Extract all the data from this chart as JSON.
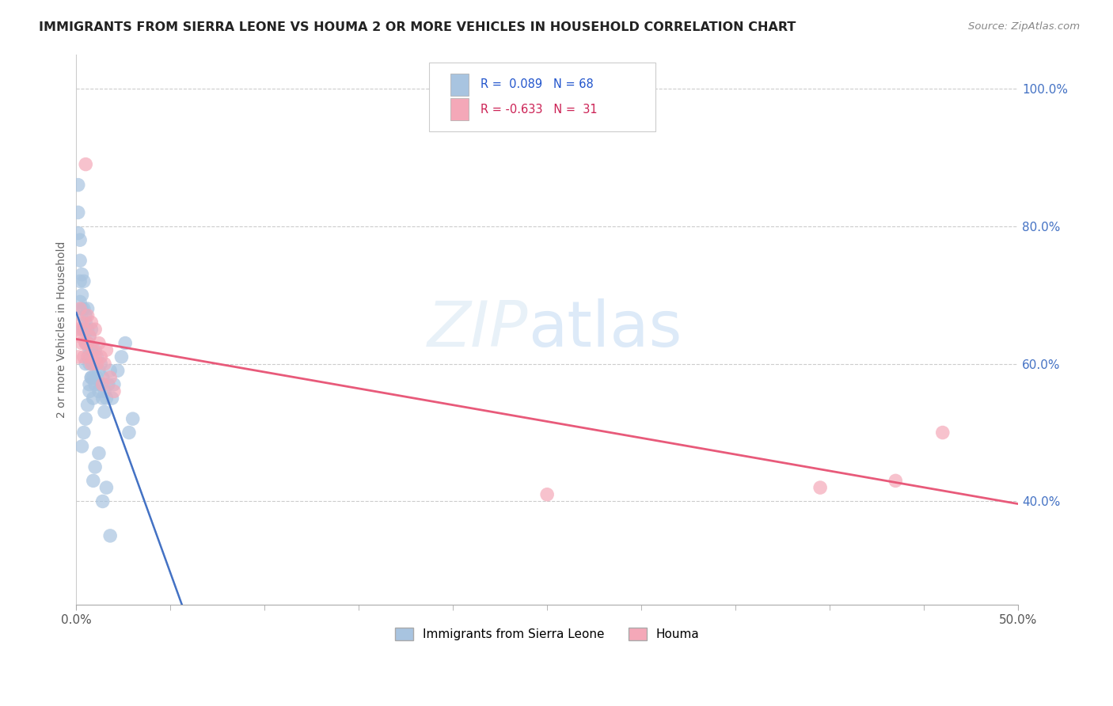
{
  "title": "IMMIGRANTS FROM SIERRA LEONE VS HOUMA 2 OR MORE VEHICLES IN HOUSEHOLD CORRELATION CHART",
  "source": "Source: ZipAtlas.com",
  "ylabel": "2 or more Vehicles in Household",
  "xlim": [
    0.0,
    0.5
  ],
  "ylim": [
    0.25,
    1.05
  ],
  "xtick_left_label": "0.0%",
  "xtick_right_label": "50.0%",
  "yticks_right": [
    0.4,
    0.6,
    0.8,
    1.0
  ],
  "yticklabels_right": [
    "40.0%",
    "60.0%",
    "80.0%",
    "100.0%"
  ],
  "R_blue": 0.089,
  "N_blue": 68,
  "R_pink": -0.633,
  "N_pink": 31,
  "blue_color": "#a8c4e0",
  "pink_color": "#f4a8b8",
  "trend_blue_color": "#4472c4",
  "trend_pink_color": "#e85a7a",
  "legend_label_blue": "Immigrants from Sierra Leone",
  "legend_label_pink": "Houma",
  "blue_x": [
    0.001,
    0.001,
    0.001,
    0.002,
    0.002,
    0.002,
    0.002,
    0.003,
    0.003,
    0.003,
    0.003,
    0.004,
    0.004,
    0.004,
    0.005,
    0.005,
    0.005,
    0.005,
    0.006,
    0.006,
    0.006,
    0.006,
    0.007,
    0.007,
    0.007,
    0.007,
    0.008,
    0.008,
    0.008,
    0.008,
    0.009,
    0.009,
    0.009,
    0.01,
    0.01,
    0.01,
    0.011,
    0.011,
    0.012,
    0.012,
    0.013,
    0.013,
    0.014,
    0.014,
    0.015,
    0.015,
    0.016,
    0.017,
    0.018,
    0.019,
    0.02,
    0.022,
    0.024,
    0.026,
    0.028,
    0.03,
    0.003,
    0.004,
    0.005,
    0.006,
    0.007,
    0.008,
    0.009,
    0.01,
    0.012,
    0.014,
    0.016,
    0.018
  ],
  "blue_y": [
    0.86,
    0.82,
    0.79,
    0.78,
    0.75,
    0.72,
    0.69,
    0.73,
    0.7,
    0.68,
    0.65,
    0.68,
    0.65,
    0.72,
    0.66,
    0.63,
    0.6,
    0.67,
    0.63,
    0.61,
    0.65,
    0.68,
    0.62,
    0.6,
    0.57,
    0.64,
    0.61,
    0.58,
    0.62,
    0.65,
    0.6,
    0.58,
    0.55,
    0.62,
    0.6,
    0.57,
    0.61,
    0.58,
    0.56,
    0.59,
    0.57,
    0.6,
    0.55,
    0.58,
    0.56,
    0.53,
    0.55,
    0.57,
    0.59,
    0.55,
    0.57,
    0.59,
    0.61,
    0.63,
    0.5,
    0.52,
    0.48,
    0.5,
    0.52,
    0.54,
    0.56,
    0.58,
    0.43,
    0.45,
    0.47,
    0.4,
    0.42,
    0.35
  ],
  "pink_x": [
    0.001,
    0.001,
    0.002,
    0.002,
    0.003,
    0.003,
    0.004,
    0.004,
    0.005,
    0.005,
    0.006,
    0.006,
    0.007,
    0.007,
    0.008,
    0.008,
    0.009,
    0.01,
    0.01,
    0.011,
    0.012,
    0.013,
    0.014,
    0.015,
    0.016,
    0.018,
    0.02,
    0.25,
    0.395,
    0.435,
    0.46
  ],
  "pink_y": [
    0.65,
    0.61,
    0.64,
    0.68,
    0.63,
    0.66,
    0.65,
    0.61,
    0.63,
    0.89,
    0.67,
    0.63,
    0.61,
    0.64,
    0.6,
    0.66,
    0.62,
    0.65,
    0.61,
    0.6,
    0.63,
    0.61,
    0.57,
    0.6,
    0.62,
    0.58,
    0.56,
    0.41,
    0.42,
    0.43,
    0.5
  ]
}
